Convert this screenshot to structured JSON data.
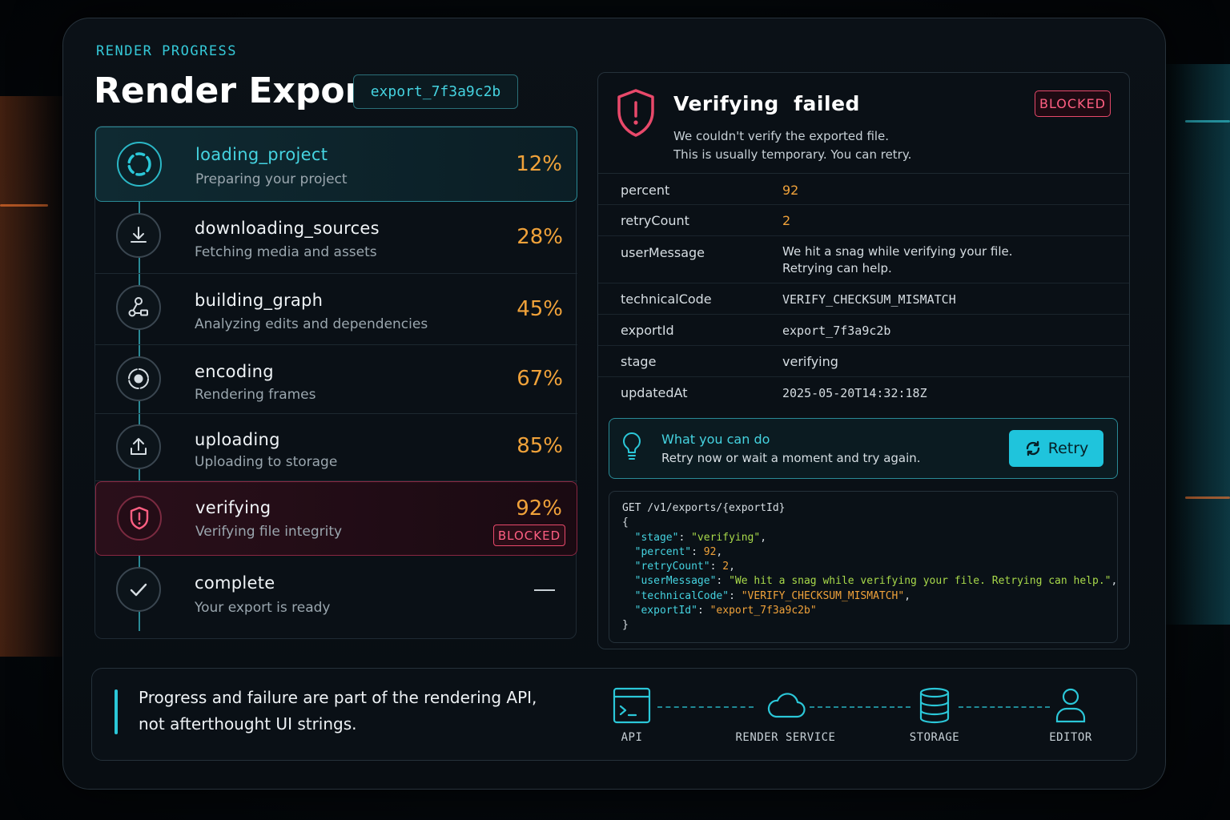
{
  "header": {
    "eyebrow": "RENDER PROGRESS",
    "title": "Render Export",
    "export_id": "export_7f3a9c2b"
  },
  "steps": [
    {
      "name": "loading_project",
      "desc": "Preparing your project",
      "pct": "12%",
      "state": "active",
      "icon": "spinner-icon"
    },
    {
      "name": "downloading_sources",
      "desc": "Fetching media and assets",
      "pct": "28%",
      "state": "done",
      "icon": "download-icon"
    },
    {
      "name": "building_graph",
      "desc": "Analyzing edits and dependencies",
      "pct": "45%",
      "state": "done",
      "icon": "graph-icon"
    },
    {
      "name": "encoding",
      "desc": "Rendering frames",
      "pct": "67%",
      "state": "done",
      "icon": "encoding-icon"
    },
    {
      "name": "uploading",
      "desc": "Uploading to storage",
      "pct": "85%",
      "state": "done",
      "icon": "upload-icon"
    },
    {
      "name": "verifying",
      "desc": "Verifying file integrity",
      "pct": "92%",
      "state": "blocked",
      "badge": "BLOCKED",
      "icon": "shield-alert-icon"
    },
    {
      "name": "complete",
      "desc": "Your export is ready",
      "pct": "—",
      "state": "pending",
      "icon": "check-icon"
    }
  ],
  "error": {
    "title": "Verifying  failed",
    "badge": "BLOCKED",
    "line1": "We couldn't verify the exported file.",
    "line2": "This is usually temporary. You can retry.",
    "icon": "shield-alert-icon",
    "color": "#e8496a"
  },
  "details": [
    {
      "key": "percent",
      "value": "92"
    },
    {
      "key": "retryCount",
      "value": "2"
    },
    {
      "key": "userMessage",
      "value": "We hit a snag while verifying your file.",
      "value2": "Retrying can help."
    },
    {
      "key": "technicalCode",
      "value": "VERIFY_CHECKSUM_MISMATCH"
    },
    {
      "key": "exportId",
      "value": "export_7f3a9c2b"
    },
    {
      "key": "stage",
      "value": "verifying"
    },
    {
      "key": "updatedAt",
      "value": "2025-05-20T14:32:18Z"
    }
  ],
  "tip": {
    "title": "What you can do",
    "text": "Retry now or wait a moment and try again.",
    "icon": "lightbulb-icon",
    "retry_label": "Retry"
  },
  "code": {
    "request": "GET /v1/exports/{exportId}",
    "open": "{",
    "close": "}",
    "fields": [
      {
        "key": "\"stage\"",
        "value": "\"verifying\"",
        "type": "s"
      },
      {
        "key": "\"percent\"",
        "value": "92",
        "type": "n"
      },
      {
        "key": "\"retryCount\"",
        "value": "2",
        "type": "n"
      },
      {
        "key": "\"userMessage\"",
        "value": "\"We hit a snag while verifying your file. Retrying can help.\"",
        "type": "s"
      },
      {
        "key": "\"technicalCode\"",
        "value": "\"VERIFY_CHECKSUM_MISMATCH\"",
        "type": "o"
      },
      {
        "key": "\"exportId\"",
        "value": "\"export_7f3a9c2b\"",
        "type": "o"
      }
    ]
  },
  "footer": {
    "line1": "Progress and failure are part of the rendering API,",
    "line2": "not afterthought UI strings.",
    "nodes": [
      {
        "label": "API",
        "icon": "terminal-icon"
      },
      {
        "label": "RENDER SERVICE",
        "icon": "cloud-icon"
      },
      {
        "label": "STORAGE",
        "icon": "database-icon"
      },
      {
        "label": "EDITOR",
        "icon": "user-icon"
      }
    ]
  },
  "colors": {
    "accent": "#2bc7d8",
    "warning": "#f0a23a",
    "danger": "#e8496a"
  }
}
